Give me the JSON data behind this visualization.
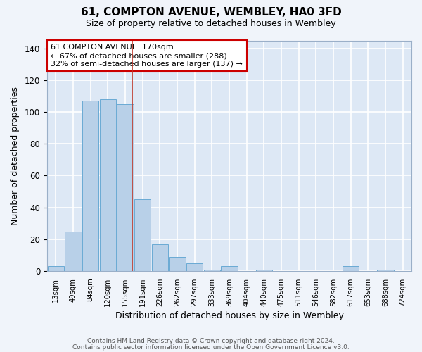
{
  "title": "61, COMPTON AVENUE, WEMBLEY, HA0 3FD",
  "subtitle": "Size of property relative to detached houses in Wembley",
  "xlabel": "Distribution of detached houses by size in Wembley",
  "ylabel": "Number of detached properties",
  "bar_labels": [
    "13sqm",
    "49sqm",
    "84sqm",
    "120sqm",
    "155sqm",
    "191sqm",
    "226sqm",
    "262sqm",
    "297sqm",
    "333sqm",
    "369sqm",
    "404sqm",
    "440sqm",
    "475sqm",
    "511sqm",
    "546sqm",
    "582sqm",
    "617sqm",
    "653sqm",
    "688sqm",
    "724sqm"
  ],
  "bar_values": [
    3,
    25,
    107,
    108,
    105,
    45,
    17,
    9,
    5,
    1,
    3,
    0,
    1,
    0,
    0,
    0,
    0,
    3,
    0,
    1,
    0
  ],
  "bar_color": "#b8d0e8",
  "bar_edge_color": "#6aaad4",
  "highlight_color": "#c0392b",
  "annotation_lines": [
    "61 COMPTON AVENUE: 170sqm",
    "← 67% of detached houses are smaller (288)",
    "32% of semi-detached houses are larger (137) →"
  ],
  "ylim": [
    0,
    145
  ],
  "yticks": [
    0,
    20,
    40,
    60,
    80,
    100,
    120,
    140
  ],
  "plot_bg_color": "#dde8f5",
  "fig_bg_color": "#f0f4fa",
  "grid_color": "#ffffff",
  "footer_line1": "Contains HM Land Registry data © Crown copyright and database right 2024.",
  "footer_line2": "Contains public sector information licensed under the Open Government Licence v3.0."
}
